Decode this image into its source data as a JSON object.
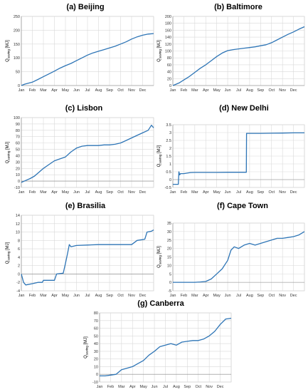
{
  "chart_data": [
    {
      "type": "line",
      "title": "(a) Beijing",
      "ylabel": "Q",
      "ylabel_sub": "saving",
      "ylabel_unit": "[MJ]",
      "ylim": [
        0,
        250
      ],
      "yticks": [
        0,
        50,
        100,
        150,
        200,
        250
      ],
      "months": [
        "Jan",
        "Feb",
        "Mar",
        "Apr",
        "May",
        "Jun",
        "Jul",
        "Aug",
        "Sep",
        "Oct",
        "Nov",
        "Dec"
      ],
      "color": "#2e75b6",
      "series": [
        {
          "x": [
            0,
            0.3,
            0.6,
            1,
            1.5,
            2,
            2.5,
            3,
            3.5,
            4,
            4.5,
            5,
            5.5,
            6,
            6.5,
            7,
            7.5,
            8,
            8.5,
            9,
            9.5,
            10,
            10.5,
            11,
            11.5,
            12
          ],
          "values": [
            0,
            5,
            8,
            12,
            22,
            32,
            42,
            52,
            63,
            72,
            80,
            90,
            100,
            110,
            118,
            124,
            130,
            136,
            142,
            150,
            158,
            168,
            176,
            182,
            186,
            188
          ]
        }
      ]
    },
    {
      "type": "line",
      "title": "(b) Baltimore",
      "ylabel": "Q",
      "ylabel_sub": "saving",
      "ylabel_unit": "[MJ]",
      "ylim": [
        0,
        200
      ],
      "yticks": [
        0,
        20,
        40,
        60,
        80,
        100,
        120,
        140,
        160,
        180,
        200
      ],
      "months": [
        "Jan",
        "Feb",
        "Mar",
        "Apr",
        "May",
        "Jun",
        "Jul",
        "Aug",
        "Sep",
        "Oct",
        "Nov",
        "Dec"
      ],
      "color": "#2e75b6",
      "series": [
        {
          "x": [
            0,
            0.3,
            0.6,
            1,
            1.5,
            2,
            2.5,
            3,
            3.5,
            4,
            4.5,
            5,
            5.5,
            6,
            6.5,
            7,
            7.5,
            8,
            8.5,
            9,
            9.5,
            10,
            10.5,
            11,
            11.5,
            12
          ],
          "values": [
            0,
            4,
            8,
            16,
            26,
            38,
            50,
            60,
            72,
            84,
            94,
            101,
            104,
            106,
            108,
            110,
            112,
            115,
            118,
            124,
            132,
            140,
            148,
            155,
            163,
            170
          ]
        }
      ]
    },
    {
      "type": "line",
      "title": "(c) Lisbon",
      "ylabel": "Q",
      "ylabel_sub": "saving",
      "ylabel_unit": "[MJ]",
      "ylim": [
        -10,
        100
      ],
      "yticks": [
        -10,
        0,
        10,
        20,
        30,
        40,
        50,
        60,
        70,
        80,
        90,
        100
      ],
      "months": [
        "Jan",
        "Feb",
        "Mar",
        "Apr",
        "May",
        "Jun",
        "Jul",
        "Aug",
        "Sep",
        "Oct",
        "Nov",
        "Dec"
      ],
      "color": "#2e75b6",
      "series": [
        {
          "x": [
            0,
            0.4,
            0.8,
            1.2,
            1.6,
            2,
            2.5,
            3,
            3.5,
            4,
            4.5,
            5,
            5.5,
            6,
            6.5,
            7,
            7.5,
            8,
            8.5,
            9,
            9.5,
            10,
            10.5,
            11,
            11.5,
            11.8,
            12
          ],
          "values": [
            -2,
            1,
            4,
            8,
            14,
            20,
            26,
            32,
            35,
            38,
            46,
            52,
            55,
            56,
            56,
            56,
            57,
            57,
            58,
            60,
            64,
            68,
            72,
            76,
            80,
            88,
            84
          ]
        }
      ]
    },
    {
      "type": "line",
      "title": "(d) New Delhi",
      "ylabel": "Q",
      "ylabel_sub": "saving",
      "ylabel_unit": "[MJ]",
      "ylim": [
        -0.5,
        3.5
      ],
      "yticks": [
        -0.5,
        0,
        0.5,
        1,
        1.5,
        2,
        2.5,
        3,
        3.5
      ],
      "months": [
        "Jan",
        "Feb",
        "Mar",
        "Apr",
        "May",
        "Jun",
        "Jul",
        "Aug",
        "Sep",
        "Oct",
        "Nov",
        "Dec"
      ],
      "color": "#2e75b6",
      "series": [
        {
          "x": [
            0,
            0.5,
            0.55,
            0.62,
            0.7,
            1,
            1.6,
            2,
            3,
            4,
            5,
            6,
            6.7,
            6.72,
            7,
            8,
            9,
            10,
            11,
            12
          ],
          "values": [
            -0.3,
            -0.3,
            0.5,
            0.3,
            0.38,
            0.38,
            0.45,
            0.46,
            0.46,
            0.46,
            0.47,
            0.47,
            0.47,
            2.95,
            2.95,
            2.95,
            2.96,
            2.97,
            2.98,
            2.98
          ]
        }
      ]
    },
    {
      "type": "line",
      "title": "(e) Brasilia",
      "ylabel": "Q",
      "ylabel_sub": "saving",
      "ylabel_unit": "[MJ]",
      "ylim": [
        -4,
        14
      ],
      "yticks": [
        -4,
        -2,
        0,
        2,
        4,
        6,
        8,
        10,
        12,
        14
      ],
      "months": [
        "Jan",
        "Feb",
        "Mar",
        "Apr",
        "May",
        "Jun",
        "Jul",
        "Aug",
        "Sep",
        "Oct",
        "Nov",
        "Dec"
      ],
      "color": "#2e75b6",
      "series": [
        {
          "x": [
            0,
            0.2,
            0.4,
            0.6,
            1,
            1.5,
            1.9,
            2,
            2.5,
            3,
            3.2,
            3.8,
            4,
            4.2,
            4.35,
            4.5,
            5,
            6,
            7,
            8,
            9,
            10,
            10.5,
            11,
            11.2,
            11.4,
            11.8,
            12
          ],
          "values": [
            0,
            -2,
            -2.6,
            -2.5,
            -2.3,
            -2,
            -2,
            -1.5,
            -1.5,
            -1.5,
            0,
            0.2,
            2.5,
            5,
            7,
            6.5,
            6.8,
            6.9,
            7,
            7,
            7,
            7,
            8,
            8.2,
            8.3,
            10,
            10.2,
            10.5
          ]
        }
      ]
    },
    {
      "type": "line",
      "title": "(f) Cape Town",
      "ylabel": "Q",
      "ylabel_sub": "saving",
      "ylabel_unit": "[MJ]",
      "ylim": [
        -5,
        35
      ],
      "yticks": [
        -5,
        0,
        5,
        10,
        15,
        20,
        25,
        30,
        35
      ],
      "months": [
        "Jan",
        "Feb",
        "Mar",
        "Apr",
        "May",
        "Jun",
        "Jul",
        "Aug",
        "Sep",
        "Oct",
        "Nov",
        "Dec"
      ],
      "color": "#2e75b6",
      "series": [
        {
          "x": [
            0,
            1,
            2,
            2.5,
            3,
            3.5,
            4,
            4.5,
            5,
            5.3,
            5.6,
            6,
            6.5,
            7,
            7.5,
            8,
            8.5,
            9,
            9.5,
            10,
            10.5,
            11,
            11.5,
            12
          ],
          "values": [
            0,
            0,
            0,
            0.2,
            0.5,
            2,
            5,
            8,
            13,
            19,
            21,
            20,
            22,
            23,
            22,
            23,
            24,
            25,
            26,
            26,
            26.5,
            27,
            28,
            30
          ]
        }
      ]
    },
    {
      "type": "line",
      "title": "(g) Canberra",
      "ylabel": "Q",
      "ylabel_sub": "saving",
      "ylabel_unit": "[MJ]",
      "ylim": [
        -10,
        80
      ],
      "yticks": [
        -10,
        0,
        10,
        20,
        30,
        40,
        50,
        60,
        70,
        80
      ],
      "months": [
        "Jan",
        "Feb",
        "Mar",
        "Apr",
        "May",
        "Jun",
        "Jul",
        "Aug",
        "Sep",
        "Oct",
        "Nov",
        "Dec"
      ],
      "color": "#2e75b6",
      "series": [
        {
          "x": [
            0,
            0.5,
            1,
            1.5,
            2,
            2.5,
            3,
            3.5,
            4,
            4.5,
            5,
            5.5,
            6,
            6.5,
            7,
            7.5,
            8,
            8.5,
            9,
            9.5,
            10,
            10.5,
            11,
            11.5,
            12
          ],
          "values": [
            -2,
            -2,
            -1,
            0,
            6,
            8,
            10,
            14,
            18,
            25,
            30,
            36,
            38,
            40,
            38,
            42,
            43,
            44,
            44,
            46,
            50,
            56,
            65,
            72,
            73
          ]
        }
      ]
    }
  ]
}
